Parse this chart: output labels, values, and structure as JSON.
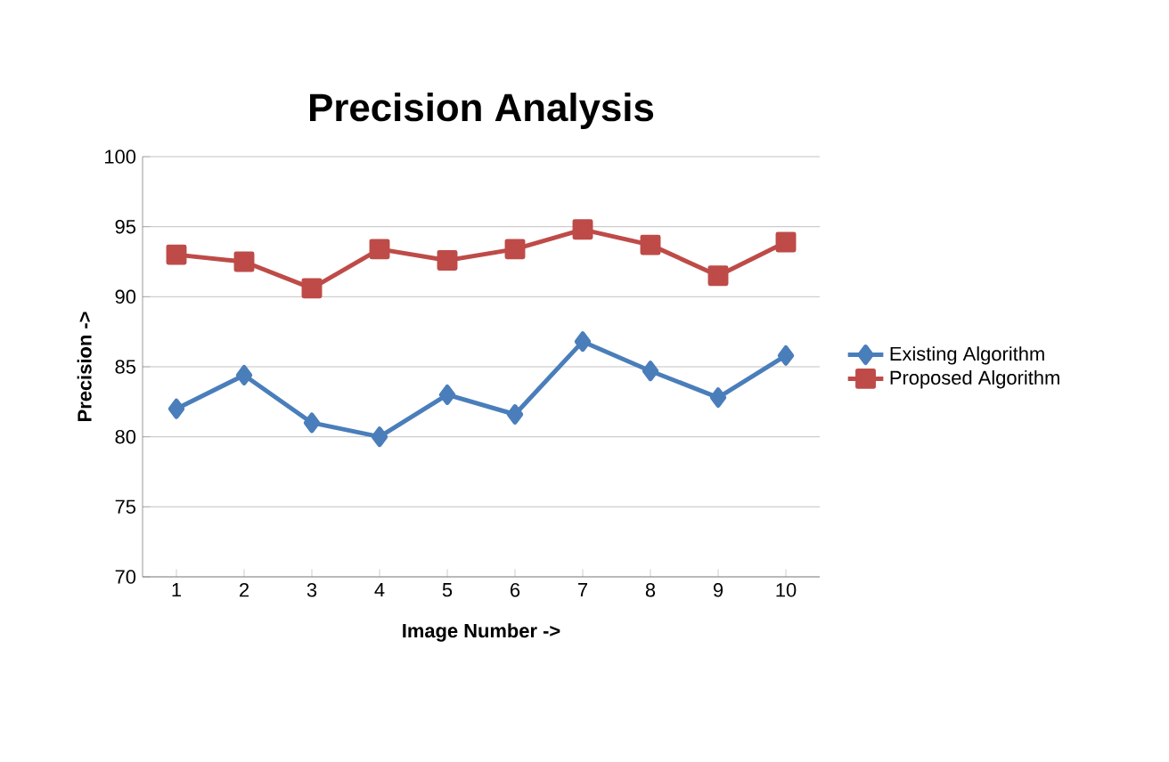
{
  "chart_data": {
    "type": "line",
    "title": "Precision Analysis",
    "xlabel": "Image Number ->",
    "ylabel": "Precision ->",
    "categories": [
      "1",
      "2",
      "3",
      "4",
      "5",
      "6",
      "7",
      "8",
      "9",
      "10"
    ],
    "series": [
      {
        "name": "Existing Algorithm",
        "color": "#4a7ebb",
        "marker": "diamond",
        "values": [
          82.0,
          84.4,
          81.0,
          80.0,
          83.0,
          81.6,
          86.8,
          84.7,
          82.8,
          85.8
        ]
      },
      {
        "name": "Proposed Algorithm",
        "color": "#be4b48",
        "marker": "square",
        "values": [
          93.0,
          92.5,
          90.6,
          93.4,
          92.6,
          93.4,
          94.8,
          93.7,
          91.5,
          93.9
        ]
      }
    ],
    "ylim": [
      70,
      100
    ],
    "yticks": [
      70,
      75,
      80,
      85,
      90,
      95,
      100
    ],
    "grid": "y",
    "legend": "right"
  }
}
